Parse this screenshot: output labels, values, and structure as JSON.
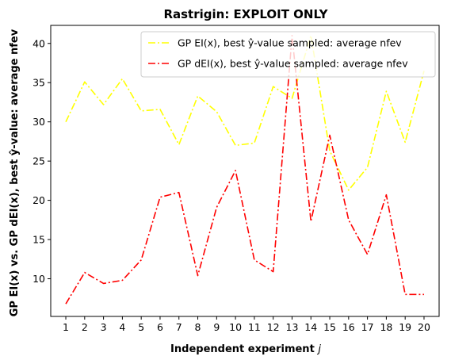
{
  "chart_data": {
    "type": "line",
    "title": "Rastrigin: EXPLOIT ONLY",
    "xlabel": "Independent experiment j",
    "ylabel": "GP EI(x) vs. GP dEI(x), best ŷ-value: average nfev",
    "categories": [
      1,
      2,
      3,
      4,
      5,
      6,
      7,
      8,
      9,
      10,
      11,
      12,
      13,
      14,
      15,
      16,
      17,
      18,
      19,
      20
    ],
    "xlim": [
      0.2,
      20.8
    ],
    "ylim": [
      5.2,
      42.3
    ],
    "yticks": [
      10,
      15,
      20,
      25,
      30,
      35,
      40
    ],
    "grid": false,
    "legend_position": "top-right",
    "series": [
      {
        "name": "GP EI(x), best ŷ-value sampled: average nfev",
        "color": "#ffff00",
        "linestyle": "dashdot",
        "values": [
          30.0,
          35.1,
          32.2,
          35.5,
          31.4,
          31.6,
          27.1,
          33.3,
          31.3,
          27.0,
          27.3,
          34.5,
          33.0,
          41.0,
          26.3,
          21.3,
          24.2,
          33.9,
          27.4,
          36.5
        ]
      },
      {
        "name": "GP dEI(x), best ŷ-value sampled: average nfev",
        "color": "#ff0000",
        "linestyle": "dashdot",
        "values": [
          6.8,
          10.8,
          9.4,
          9.8,
          12.4,
          20.4,
          21.0,
          10.4,
          19.1,
          23.8,
          12.4,
          10.9,
          41.0,
          17.3,
          28.3,
          17.5,
          13.1,
          20.7,
          8.0,
          8.0
        ]
      }
    ]
  }
}
